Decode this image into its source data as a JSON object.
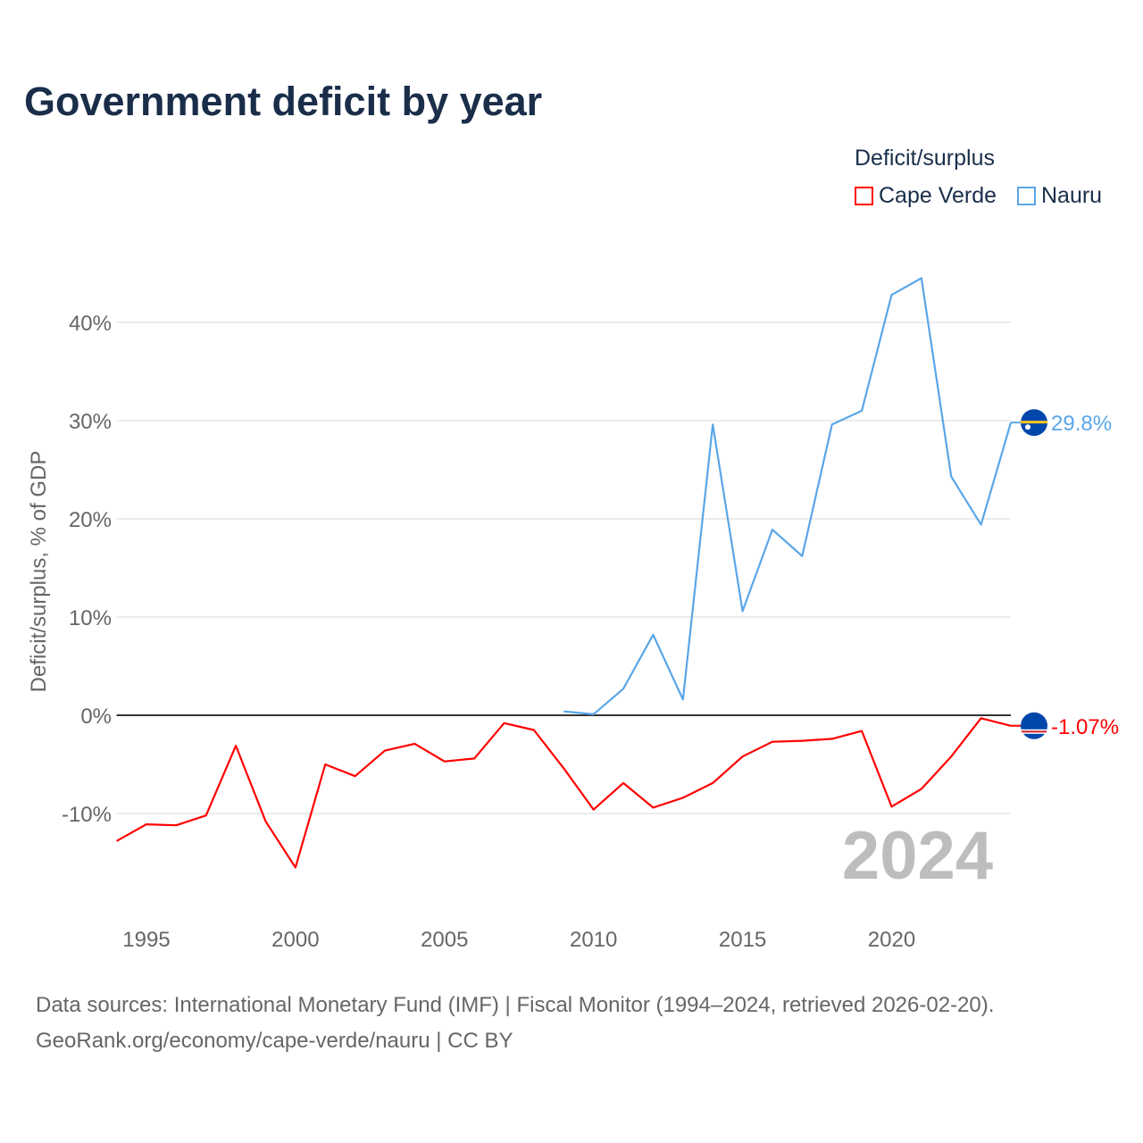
{
  "title": "Government deficit by year",
  "legend": {
    "title": "Deficit/surplus",
    "items": [
      {
        "label": "Cape Verde",
        "color": "#ff0000"
      },
      {
        "label": "Nauru",
        "color": "#5aa6e8"
      }
    ]
  },
  "watermark_year": "2024",
  "footer": {
    "line1": "Data sources: International Monetary Fund (IMF) | Fiscal Monitor (1994–2024, retrieved 2026-02-20).",
    "line2": "GeoRank.org/economy/cape-verde/nauru | CC BY"
  },
  "chart_data": {
    "type": "line",
    "title": "Government deficit by year",
    "xlabel": "",
    "ylabel": "Deficit/surplus, % of GDP",
    "xlim": [
      1994,
      2024
    ],
    "ylim": [
      -18,
      47
    ],
    "x_ticks": [
      1995,
      2000,
      2005,
      2010,
      2015,
      2020
    ],
    "y_ticks": [
      {
        "v": 40,
        "label": "40%"
      },
      {
        "v": 30,
        "label": "30%"
      },
      {
        "v": 20,
        "label": "20%"
      },
      {
        "v": 10,
        "label": "10%"
      },
      {
        "v": 0,
        "label": "0%"
      },
      {
        "v": -10,
        "label": "-10%"
      }
    ],
    "grid": true,
    "legend_position": "top-right",
    "series": [
      {
        "name": "Cape Verde",
        "color": "#ff0000",
        "end_label": "-1.07%",
        "x": [
          1994,
          1995,
          1996,
          1997,
          1998,
          1999,
          2000,
          2001,
          2002,
          2003,
          2004,
          2005,
          2006,
          2007,
          2008,
          2009,
          2010,
          2011,
          2012,
          2013,
          2014,
          2015,
          2016,
          2017,
          2018,
          2019,
          2020,
          2021,
          2022,
          2023,
          2024
        ],
        "values": [
          -12.8,
          -11.1,
          -11.2,
          -10.2,
          -3.1,
          -10.8,
          -15.5,
          -5.0,
          -6.2,
          -3.6,
          -2.9,
          -4.7,
          -4.4,
          -0.8,
          -1.5,
          -5.4,
          -9.6,
          -6.9,
          -9.4,
          -8.4,
          -6.9,
          -4.2,
          -2.7,
          -2.6,
          -2.4,
          -1.6,
          -9.3,
          -7.5,
          -4.2,
          -0.3,
          -1.07
        ]
      },
      {
        "name": "Nauru",
        "color": "#5aa6e8",
        "end_label": "29.8%",
        "x": [
          2009,
          2010,
          2011,
          2012,
          2013,
          2014,
          2015,
          2016,
          2017,
          2018,
          2019,
          2020,
          2021,
          2022,
          2023,
          2024
        ],
        "values": [
          0.4,
          0.1,
          2.7,
          8.2,
          1.6,
          29.6,
          10.6,
          18.9,
          16.2,
          29.6,
          31.0,
          42.8,
          44.5,
          24.3,
          19.4,
          29.8
        ]
      }
    ]
  }
}
